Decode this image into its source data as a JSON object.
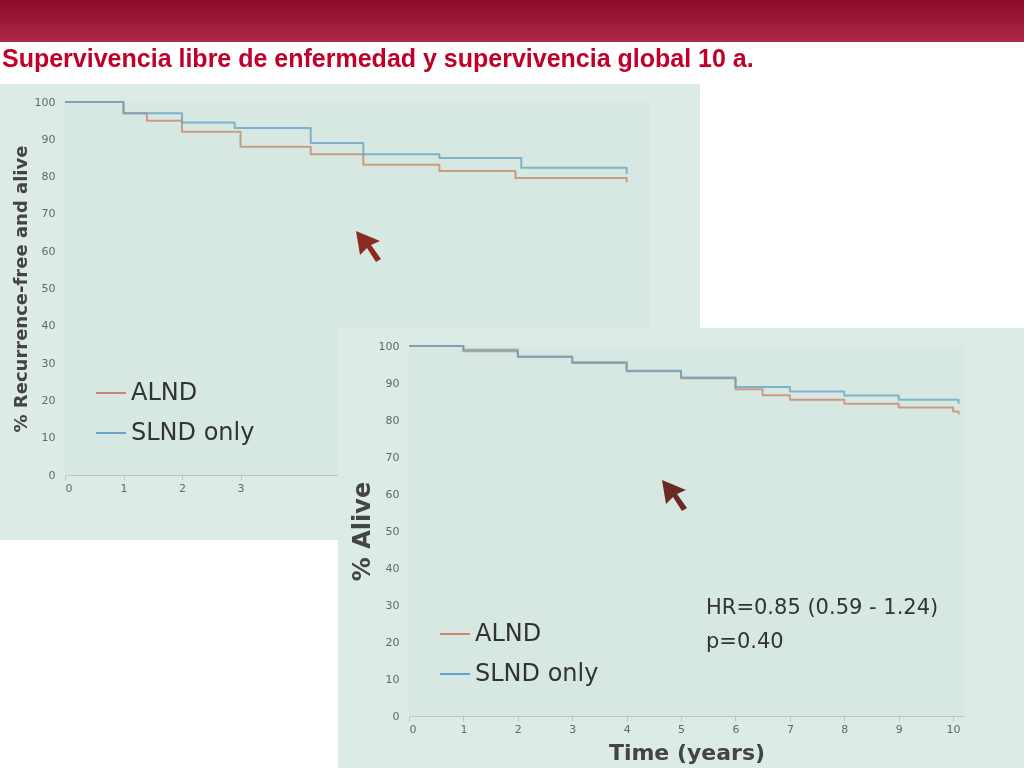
{
  "chart_data": [
    {
      "type": "step",
      "title": "Supervivencia libre de enfermedad y supervivencia global 10 a.",
      "ylabel": "% Recurrence-free and alive",
      "xlim": [
        0,
        10
      ],
      "xticks": [
        0,
        1,
        2,
        3
      ],
      "ylim": [
        0,
        100
      ],
      "yticks": [
        0,
        10,
        20,
        30,
        40,
        50,
        60,
        70,
        80,
        90,
        100
      ],
      "legend": "bottom left",
      "series": [
        {
          "name": "ALND",
          "color": "#c8866c",
          "x": [
            0,
            1,
            1.4,
            2,
            3,
            4.2,
            5.1,
            6.4,
            7.7,
            9.6
          ],
          "values": [
            100,
            97,
            95,
            92,
            88,
            86,
            83.2,
            81.5,
            79.6,
            78.5
          ]
        },
        {
          "name": "SLND only",
          "color": "#6aa2c6",
          "x": [
            0,
            1,
            2,
            2.9,
            4.2,
            5.1,
            6.4,
            7.8,
            9.6
          ],
          "values": [
            100,
            97,
            94.5,
            93,
            89,
            86,
            85,
            82.4,
            80.7
          ]
        }
      ]
    },
    {
      "type": "step",
      "xlabel": "Time (years)",
      "ylabel": "% Alive",
      "xlim": [
        0,
        10.2
      ],
      "xticks": [
        0,
        1,
        2,
        3,
        4,
        5,
        6,
        7,
        8,
        9,
        10
      ],
      "ylim": [
        0,
        100
      ],
      "yticks": [
        0,
        10,
        20,
        30,
        40,
        50,
        60,
        70,
        80,
        90,
        100
      ],
      "legend": "bottom left",
      "annotations": [
        "HR=0.85 (0.59 - 1.24)",
        "p=0.40"
      ],
      "series": [
        {
          "name": "ALND",
          "color": "#c8866c",
          "x": [
            0,
            1,
            2,
            3,
            4,
            5,
            6,
            6.5,
            7,
            8,
            9,
            10,
            10.1
          ],
          "values": [
            100,
            98.6,
            97.1,
            95.4,
            93.2,
            91.3,
            88.3,
            86.7,
            85.5,
            84.4,
            83.4,
            82.3,
            81.5
          ]
        },
        {
          "name": "SLND only",
          "color": "#6aa2c6",
          "x": [
            0,
            1,
            2,
            3,
            4,
            5,
            6,
            7,
            8,
            9,
            10.1
          ],
          "values": [
            100,
            99,
            97.1,
            95.6,
            93.3,
            91.5,
            88.9,
            87.7,
            86.6,
            85.5,
            84.4
          ]
        }
      ]
    }
  ]
}
